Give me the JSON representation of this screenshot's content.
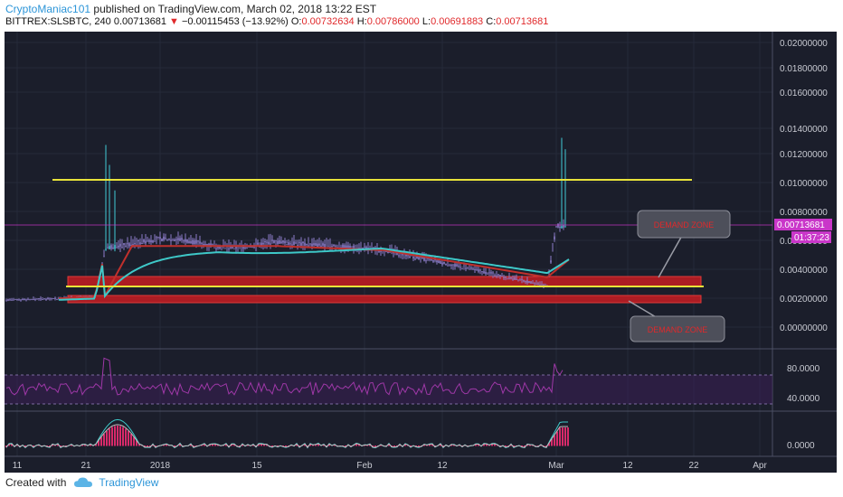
{
  "header": {
    "author": "CryptoManiac101",
    "published": " published on TradingView.com, March 02, 2018 13:22 EST",
    "symbol": "BITTREX:SLSBTC, 240",
    "last": "0.00713681",
    "change": "−0.00115453 (−13.92%)",
    "o_label": "O:",
    "o": "0.00732634",
    "h_label": "H:",
    "h": "0.00786000",
    "l_label": "L:",
    "l": "0.00691883",
    "c_label": "C:",
    "c": "0.00713681"
  },
  "footer": {
    "created": "Created with",
    "brand": "TradingView"
  },
  "colors": {
    "bg": "#1b1e2b",
    "candle": "#8c7cc8",
    "spike": "#41c9d6",
    "ma_red": "#c0302c",
    "ma_cyan": "#3ec8c8",
    "line": "#e8e33a",
    "zone": "#c61c22",
    "rsi": "#9f38a8",
    "price_tag": "#c936c9"
  },
  "price_axis": {
    "ticks": [
      "0.02000000",
      "0.01800000",
      "0.01600000",
      "0.01400000",
      "0.01200000",
      "0.01000000",
      "0.00800000",
      "0.00600000",
      "0.00400000",
      "0.00200000",
      "0.00000000"
    ],
    "price_label": "0.00713681",
    "time_label": "01:37:23"
  },
  "rsi_axis": {
    "ticks": [
      "80.0000",
      "40.0000"
    ]
  },
  "macd_axis": {
    "ticks": [
      "0.0000"
    ]
  },
  "x_axis": {
    "ticks": [
      "11",
      "21",
      "2018",
      "15",
      "Feb",
      "12",
      "Mar",
      "12",
      "22",
      "Apr"
    ]
  },
  "annotations": {
    "upper": "DEMAND ZONE",
    "lower": "DEMAND ZONE"
  },
  "chart_data": {
    "type": "candlestick",
    "ylim": [
      0,
      0.021
    ],
    "last_price": 0.00713681,
    "resistance": 0.0103,
    "support": 0.0028,
    "demand_zone_upper": [
      0.0029,
      0.0033
    ],
    "demand_zone_lower": [
      0.0018,
      0.0021
    ],
    "rsi_levels": [
      70,
      30
    ],
    "series": [
      {
        "name": "close",
        "x": [
          "11",
          "21",
          "2018",
          "15",
          "Feb",
          "12",
          "Mar"
        ],
        "values": [
          0.0018,
          0.002,
          0.0059,
          0.0062,
          0.0055,
          0.0045,
          0.0071
        ]
      }
    ]
  }
}
